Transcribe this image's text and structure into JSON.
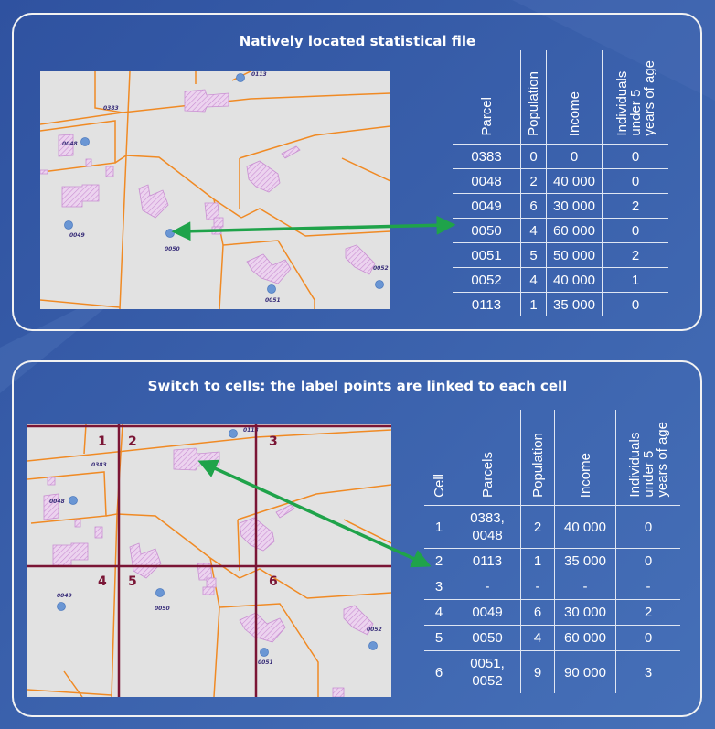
{
  "panel1": {
    "title": "Natively located statistical file",
    "map": {
      "parcel_labels": [
        "0383",
        "0048",
        "0049",
        "0050",
        "0051",
        "0052",
        "0113"
      ]
    },
    "table": {
      "headers": [
        "Parcel",
        "Population",
        "Income",
        "Individuals\nunder 5\nyears of age"
      ],
      "rows": [
        [
          "0383",
          "0",
          "0",
          "0"
        ],
        [
          "0048",
          "2",
          "40 000",
          "0"
        ],
        [
          "0049",
          "6",
          "30 000",
          "2"
        ],
        [
          "0050",
          "4",
          "60 000",
          "0"
        ],
        [
          "0051",
          "5",
          "50 000",
          "2"
        ],
        [
          "0052",
          "4",
          "40 000",
          "1"
        ],
        [
          "0113",
          "1",
          "35 000",
          "0"
        ]
      ]
    }
  },
  "panel2": {
    "title": "Switch to cells: the label points are linked to each cell",
    "map": {
      "parcel_labels": [
        "0383",
        "0048",
        "0049",
        "0050",
        "0051",
        "0052",
        "0113"
      ],
      "cell_numbers": [
        "1",
        "2",
        "3",
        "4",
        "5",
        "6"
      ]
    },
    "table": {
      "headers": [
        "Cell",
        "Parcels",
        "Population",
        "Income",
        "Individuals\nunder 5\nyears of age"
      ],
      "rows": [
        [
          "1",
          "0383,\n0048",
          "2",
          "40 000",
          "0"
        ],
        [
          "2",
          "0113",
          "1",
          "35 000",
          "0"
        ],
        [
          "3",
          "-",
          "-",
          "-",
          "-"
        ],
        [
          "4",
          "0049",
          "6",
          "30 000",
          "2"
        ],
        [
          "5",
          "0050",
          "4",
          "60 000",
          "0"
        ],
        [
          "6",
          "0051,\n0052",
          "9",
          "90 000",
          "3"
        ]
      ]
    }
  },
  "colors": {
    "background": "#3a5fa8",
    "map_fill": "#e2e2e2",
    "boundary": "#f08a24",
    "building": "#e6c6ea",
    "point": "#6a96d4",
    "grid": "#7a1535",
    "arrow": "#1fa34a"
  }
}
